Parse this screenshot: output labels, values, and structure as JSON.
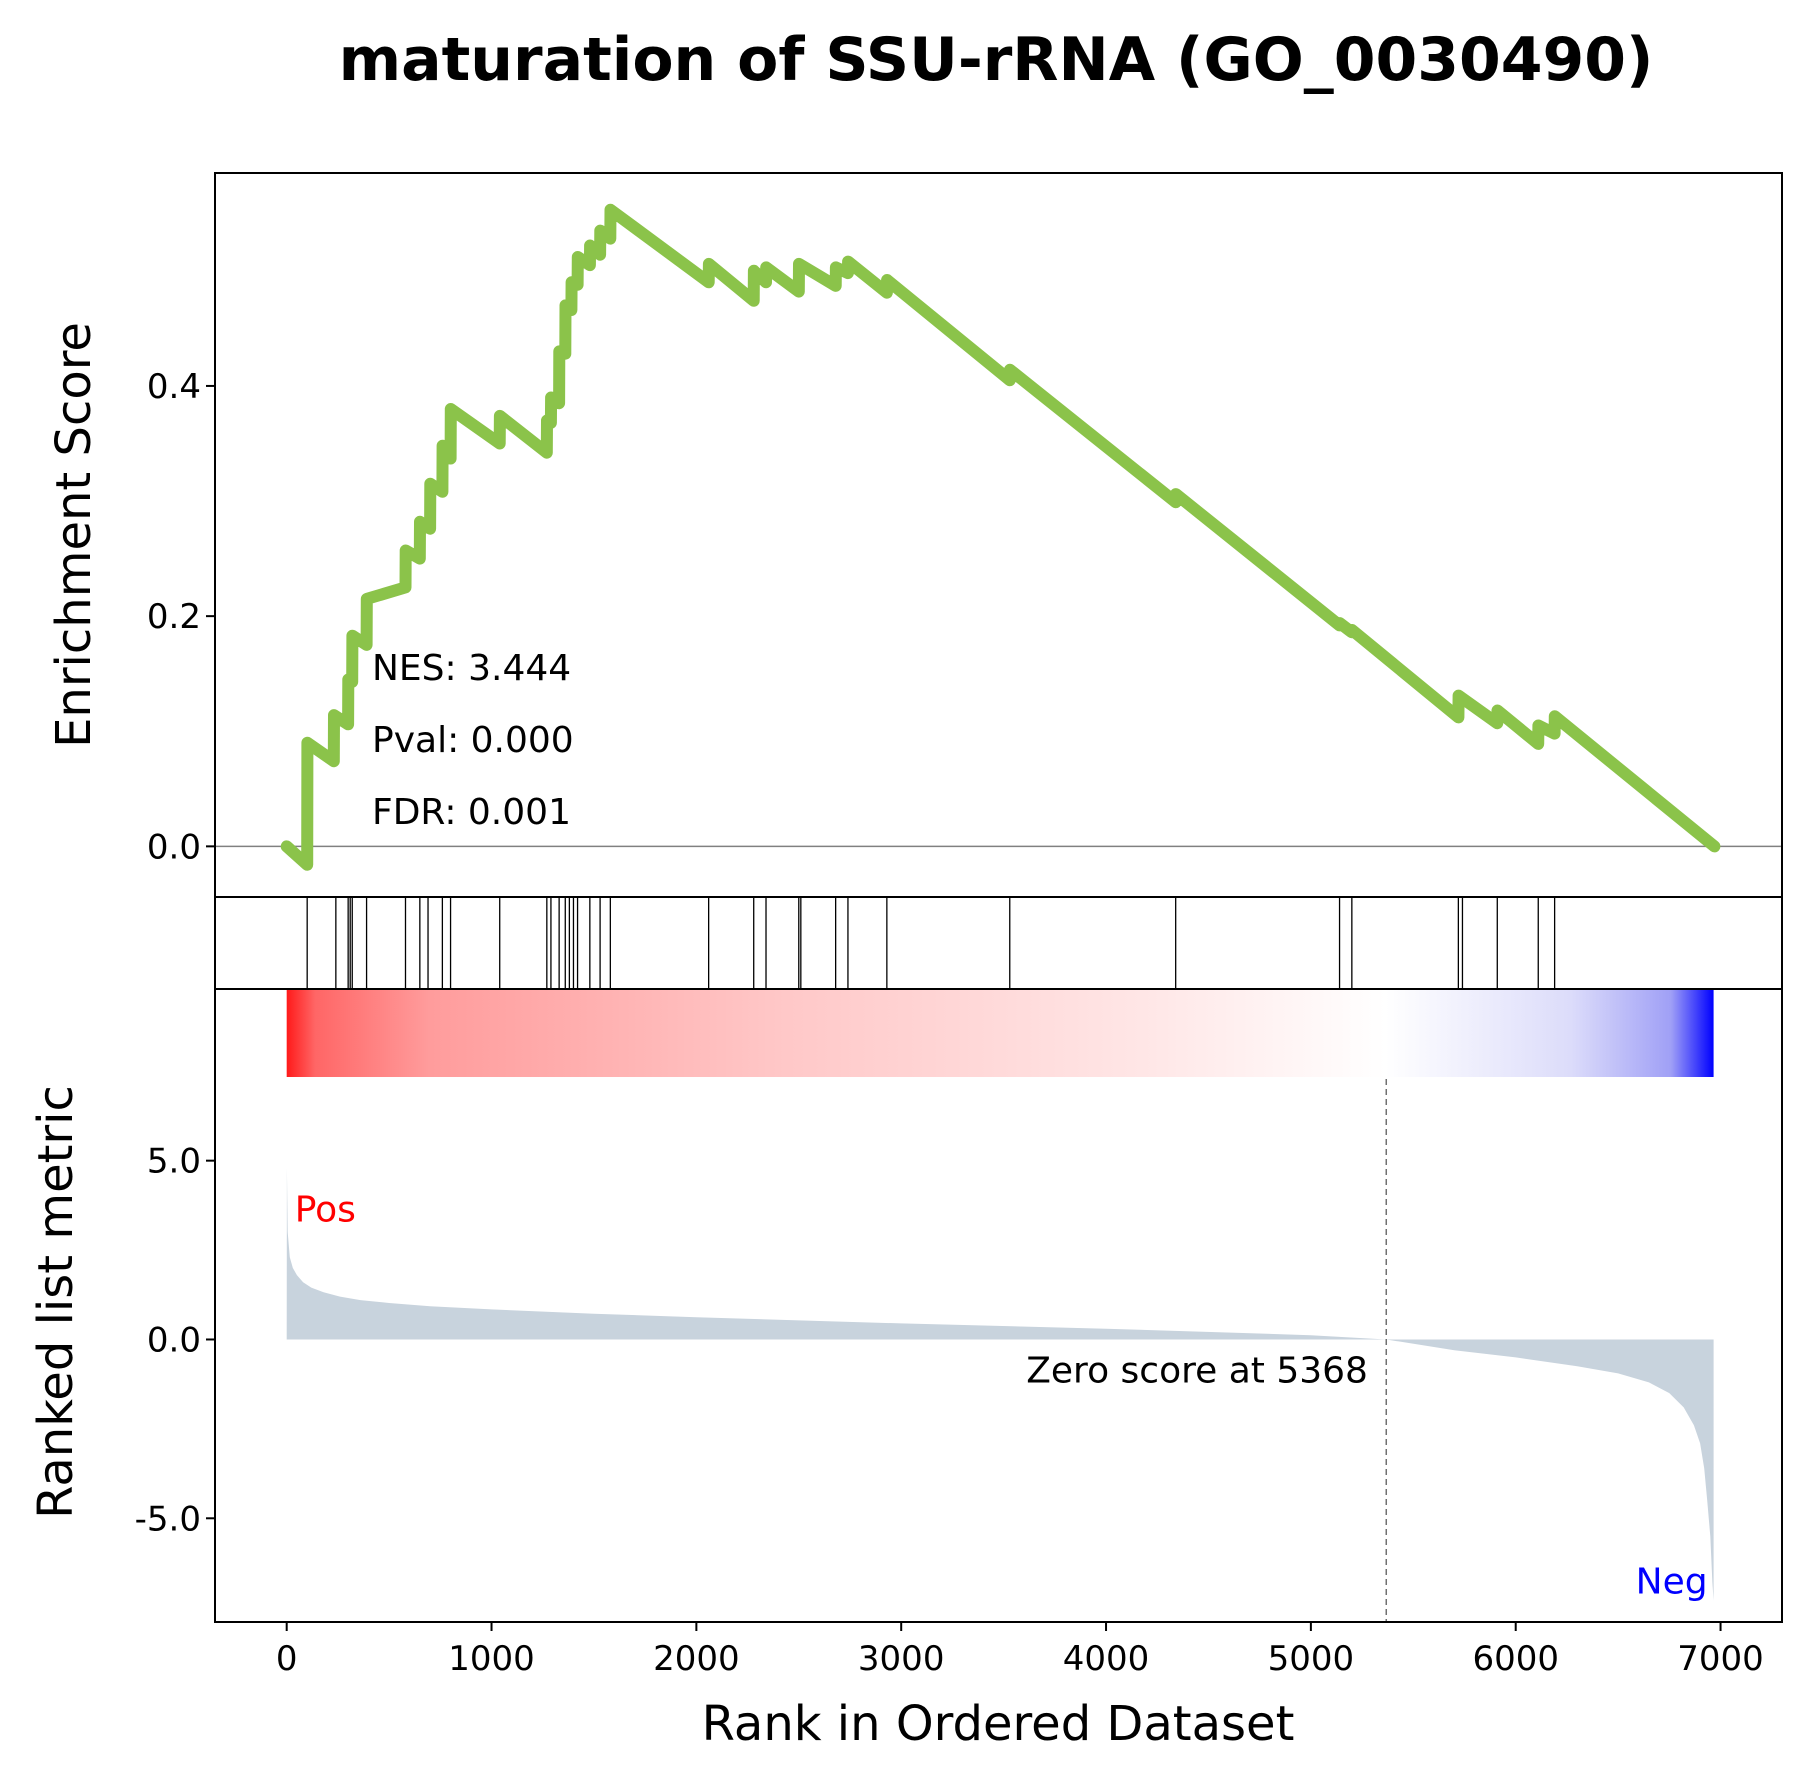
{
  "chart_data": {
    "type": "line",
    "title": "maturation of SSU-rRNA (GO_0030490)",
    "xlabel": "Rank in Ordered Dataset",
    "xlim": [
      -350,
      7300
    ],
    "x_ticks": [
      "0",
      "1000",
      "2000",
      "3000",
      "4000",
      "5000",
      "6000",
      "7000"
    ],
    "enrichment": {
      "ylabel": "Enrichment Score",
      "ylim": [
        -0.044,
        0.585
      ],
      "y_ticks": [
        "0.0",
        "0.2",
        "0.4"
      ],
      "line_color": "#8bc34a",
      "x": [
        0,
        100,
        101,
        230,
        231,
        300,
        301,
        320,
        321,
        390,
        391,
        580,
        581,
        650,
        651,
        700,
        701,
        760,
        761,
        800,
        801,
        1040,
        1041,
        1270,
        1271,
        1290,
        1291,
        1330,
        1331,
        1360,
        1361,
        1390,
        1391,
        1420,
        1421,
        1480,
        1481,
        1530,
        1531,
        1580,
        1581,
        2060,
        2061,
        2280,
        2281,
        2340,
        2341,
        2500,
        2501,
        2680,
        2681,
        2740,
        2741,
        2930,
        2931,
        3530,
        3531,
        4340,
        4341,
        5140,
        5141,
        5200,
        5201,
        5720,
        5721,
        5910,
        5911,
        6110,
        6111,
        6190,
        6191,
        6970
      ],
      "y": [
        0,
        -0.016,
        0.09,
        0.074,
        0.114,
        0.106,
        0.145,
        0.143,
        0.183,
        0.175,
        0.215,
        0.225,
        0.257,
        0.25,
        0.282,
        0.276,
        0.315,
        0.308,
        0.348,
        0.337,
        0.38,
        0.35,
        0.374,
        0.342,
        0.37,
        0.368,
        0.39,
        0.385,
        0.43,
        0.428,
        0.47,
        0.466,
        0.49,
        0.488,
        0.512,
        0.505,
        0.522,
        0.514,
        0.535,
        0.528,
        0.553,
        0.49,
        0.506,
        0.474,
        0.5,
        0.49,
        0.503,
        0.482,
        0.506,
        0.487,
        0.503,
        0.498,
        0.508,
        0.481,
        0.492,
        0.405,
        0.414,
        0.299,
        0.306,
        0.192,
        0.194,
        0.186,
        0.188,
        0.112,
        0.131,
        0.107,
        0.118,
        0.089,
        0.105,
        0.098,
        0.113,
        0.0
      ],
      "annotations": [
        "NES: 3.444",
        "Pval: 0.000",
        "FDR: 0.001"
      ]
    },
    "hits": [
      100,
      240,
      300,
      310,
      320,
      390,
      580,
      650,
      690,
      760,
      800,
      1040,
      1270,
      1290,
      1330,
      1360,
      1380,
      1400,
      1420,
      1480,
      1530,
      1580,
      2060,
      2280,
      2340,
      2500,
      2510,
      2680,
      2740,
      2930,
      3530,
      4340,
      5140,
      5200,
      5720,
      5740,
      5910,
      6110,
      6190
    ],
    "ranked_metric": {
      "ylabel": "Ranked list metric",
      "ylim": [
        -7.9,
        9.8
      ],
      "y_ticks": [
        5.0,
        0.0,
        -5.0
      ],
      "y_tick_labels": [
        "5.0",
        "0.0",
        "-5.0"
      ],
      "fill_color": "#c8d3dd",
      "x": [
        0,
        1,
        5,
        15,
        30,
        50,
        80,
        120,
        180,
        260,
        360,
        500,
        700,
        1000,
        1500,
        2000,
        3000,
        4000,
        5000,
        5368,
        5700,
        6000,
        6300,
        6500,
        6650,
        6750,
        6820,
        6870,
        6900,
        6920,
        6935,
        6950,
        6960,
        6966
      ],
      "y": [
        0,
        4.8,
        3.0,
        2.3,
        2.0,
        1.8,
        1.6,
        1.45,
        1.32,
        1.2,
        1.1,
        1.02,
        0.93,
        0.84,
        0.72,
        0.62,
        0.45,
        0.3,
        0.12,
        0.0,
        -0.3,
        -0.5,
        -0.75,
        -0.95,
        -1.2,
        -1.5,
        -1.9,
        -2.4,
        -2.9,
        -3.6,
        -4.5,
        -5.5,
        -6.8,
        -7.3
      ],
      "zero_score_rank": 5368,
      "zero_label": "Zero score at 5368",
      "pos_label": "Pos",
      "neg_label": "Neg",
      "pos_color": "#ff0000",
      "neg_color": "#0000ff"
    }
  }
}
